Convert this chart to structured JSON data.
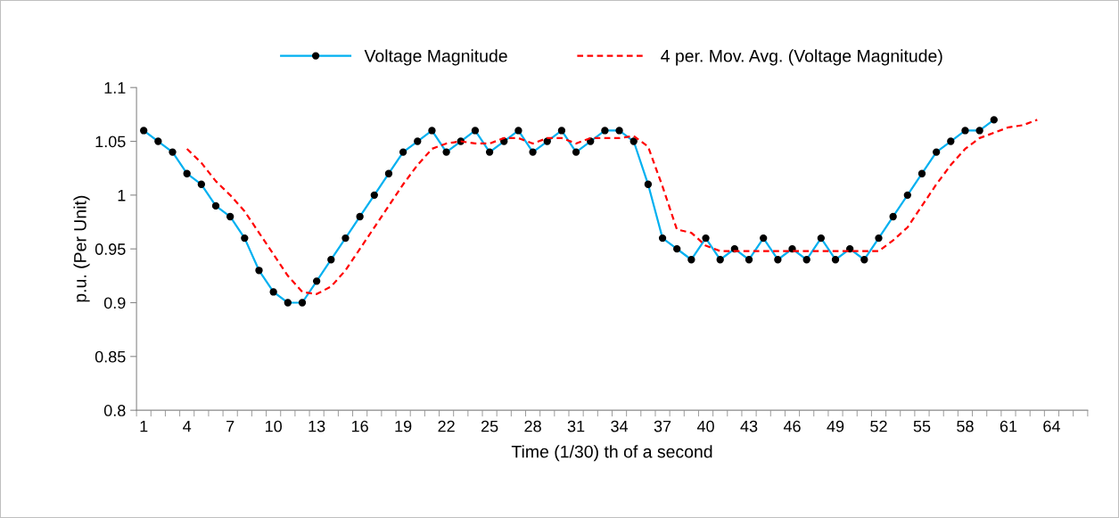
{
  "chart_data": {
    "type": "line",
    "xlabel": "Time (1/30) th of a second",
    "ylabel": "p.u. (Per Unit)",
    "categories": [
      "1",
      null,
      null,
      "4",
      null,
      null,
      "7",
      null,
      null,
      "10",
      null,
      null,
      "13",
      null,
      null,
      "16",
      null,
      null,
      "19",
      null,
      null,
      "22",
      null,
      null,
      "25",
      null,
      null,
      "28",
      null,
      null,
      "31",
      null,
      null,
      "34",
      null,
      null,
      "37",
      null,
      null,
      "40",
      null,
      null,
      "43",
      null,
      null,
      "46",
      null,
      null,
      "49",
      null,
      null,
      "52",
      null,
      null,
      "55",
      null,
      null,
      "58",
      null,
      null,
      "61",
      null,
      null,
      "64",
      null,
      null
    ],
    "series": [
      {
        "name": "Voltage Magnitude",
        "color": "#00b0f0",
        "marker": "circle",
        "line_style": "solid",
        "values": [
          1.06,
          1.05,
          1.04,
          1.02,
          1.01,
          0.99,
          0.98,
          0.96,
          0.93,
          0.91,
          0.9,
          0.9,
          0.92,
          0.94,
          0.96,
          0.98,
          1.0,
          1.02,
          1.04,
          1.05,
          1.06,
          1.04,
          1.05,
          1.06,
          1.04,
          1.05,
          1.06,
          1.04,
          1.05,
          1.06,
          1.04,
          1.05,
          1.06,
          1.06,
          1.05,
          1.01,
          0.96,
          0.95,
          0.94,
          0.96,
          0.94,
          0.95,
          0.94,
          0.96,
          0.94,
          0.95,
          0.94,
          0.96,
          0.94,
          0.95,
          0.94,
          0.96,
          0.98,
          1.0,
          1.02,
          1.04,
          1.05,
          1.06,
          1.06,
          1.07,
          null,
          null,
          null,
          null,
          null,
          null
        ]
      },
      {
        "name": "4 per. Mov. Avg. (Voltage Magnitude)",
        "color": "#ff0000",
        "marker": "none",
        "line_style": "dashed",
        "values": [
          null,
          null,
          null,
          1.043,
          1.03,
          1.013,
          1.0,
          0.985,
          0.965,
          0.945,
          0.925,
          0.91,
          0.908,
          0.915,
          0.93,
          0.95,
          0.97,
          0.99,
          1.01,
          1.028,
          1.043,
          1.048,
          1.05,
          1.048,
          1.048,
          1.053,
          1.053,
          1.048,
          1.053,
          1.053,
          1.048,
          1.053,
          1.053,
          1.053,
          1.055,
          1.045,
          1.008,
          0.968,
          0.965,
          0.953,
          0.948,
          0.948,
          0.948,
          0.948,
          0.948,
          0.948,
          0.948,
          0.948,
          0.948,
          0.948,
          0.948,
          0.948,
          0.958,
          0.97,
          0.99,
          1.01,
          1.028,
          1.043,
          1.053,
          1.058,
          1.063,
          1.065,
          1.07,
          null,
          null,
          null
        ]
      }
    ],
    "ylim": [
      0.8,
      1.1
    ],
    "yticks": [
      0.8,
      0.85,
      0.9,
      0.95,
      1,
      1.05,
      1.1
    ],
    "grid": false,
    "legend": "top"
  }
}
